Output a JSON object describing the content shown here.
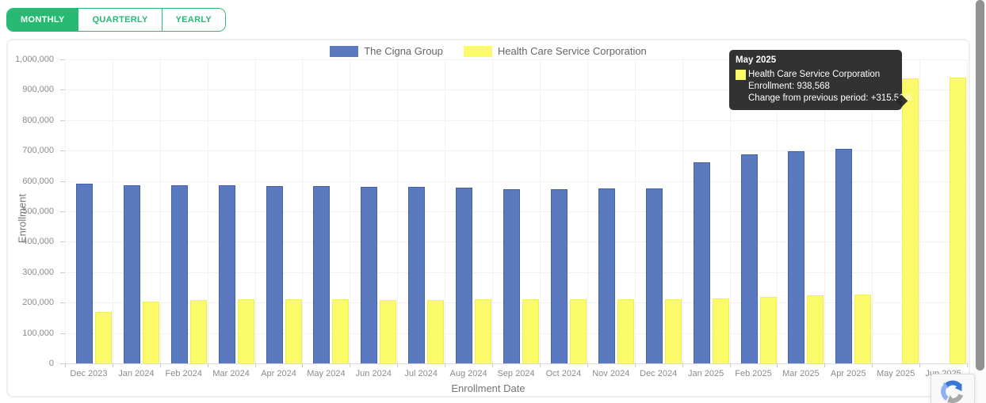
{
  "controls": {
    "buttons": [
      {
        "label": "MONTHLY",
        "active": true
      },
      {
        "label": "QUARTERLY",
        "active": false
      },
      {
        "label": "YEARLY",
        "active": false
      }
    ],
    "accent_color": "#26ba73"
  },
  "chart_data": {
    "type": "bar",
    "title": "",
    "xlabel": "Enrollment Date",
    "ylabel": "Enrollment",
    "ylim": [
      0,
      1000000
    ],
    "ytick_step": 100000,
    "grid": true,
    "legend_position": "top",
    "categories": [
      "Dec 2023",
      "Jan 2024",
      "Feb 2024",
      "Mar 2024",
      "Apr 2024",
      "May 2024",
      "Jun 2024",
      "Jul 2024",
      "Aug 2024",
      "Sep 2024",
      "Oct 2024",
      "Nov 2024",
      "Dec 2024",
      "Jan 2025",
      "Feb 2025",
      "Mar 2025",
      "Apr 2025",
      "May 2025",
      "Jun 2025"
    ],
    "series": [
      {
        "name": "The Cigna Group",
        "color": "#5b79be",
        "border_color": "#4360aa",
        "values": [
          591000,
          586000,
          586000,
          585000,
          584000,
          583000,
          582000,
          580000,
          578000,
          574000,
          573000,
          575000,
          575000,
          662000,
          688000,
          698000,
          706000,
          null,
          null
        ]
      },
      {
        "name": "Health Care Service Corporation",
        "color": "#fbfb69",
        "border_color": "#f0f056",
        "values": [
          170000,
          203000,
          208000,
          210000,
          210000,
          210000,
          208000,
          209000,
          210000,
          211000,
          210000,
          211000,
          212000,
          213000,
          219000,
          223000,
          225884,
          938568,
          941000
        ]
      }
    ]
  },
  "tooltip": {
    "title": "May 2025",
    "series": "Health Care Service Corporation",
    "swatch_color": "#fbfb69",
    "enrollment_line": "Enrollment: 938,568",
    "change_line": "Change from previous period: +315.51%"
  },
  "icons": {
    "recaptcha": "recaptcha-logo-icon"
  }
}
